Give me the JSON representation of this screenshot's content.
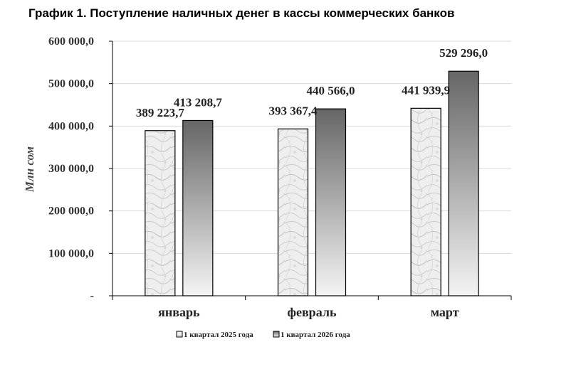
{
  "title": "График 1. Поступление наличных денег в кассы коммерческих банков",
  "chart_data": {
    "type": "bar",
    "title": "График 1. Поступление наличных денег в кассы коммерческих банков",
    "ylabel": "Млн сом",
    "xlabel": "",
    "categories": [
      "январь",
      "февраль",
      "март"
    ],
    "series": [
      {
        "name": "1 квартал 2025 года",
        "values": [
          389223.7,
          393367.4,
          441939.9
        ],
        "labels": [
          "389 223,7",
          "393 367,4",
          "441 939,9"
        ],
        "fill": "marble-light"
      },
      {
        "name": "1 квартал 2026 года",
        "values": [
          413208.7,
          440566.0,
          529296.0
        ],
        "labels": [
          "413 208,7",
          "440 566,0",
          "529 296,0"
        ],
        "fill": "gray-gradient"
      }
    ],
    "ylim": [
      0,
      600000
    ],
    "yticks": [
      0,
      100000,
      200000,
      300000,
      400000,
      500000,
      600000
    ],
    "ytick_labels": [
      "-",
      "100 000,0",
      "200 000,0",
      "300 000,0",
      "400 000,0",
      "500 000,0",
      "600 000,0"
    ],
    "grid": true,
    "legend_position": "bottom",
    "colors": {
      "grid": "#d9d9d9",
      "axis": "#000000",
      "bar_outline": "#000000",
      "gradient_dark": "#666666",
      "gradient_light": "#f2f2f2"
    }
  }
}
